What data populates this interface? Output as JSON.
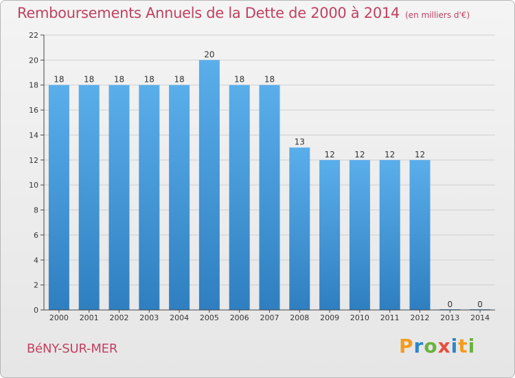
{
  "title": "Remboursements Annuels de la Dette de 2000 à 2014",
  "unit": "(en milliers d'€)",
  "location": "BéNY-SUR-MER",
  "logo": {
    "letters": [
      "P",
      "r",
      "o",
      "x",
      "i",
      "t",
      "i"
    ],
    "colors": [
      "#f39c1f",
      "#2e86c9",
      "#6ab23e",
      "#e94e3d",
      "#2e86c9",
      "#f39c1f",
      "#6ab23e"
    ]
  },
  "colors": {
    "bar_top": "#5aaeea",
    "bar_bottom": "#2f7fc0",
    "title": "#c0415f",
    "grid": "#cfcfcf",
    "axis": "#444444",
    "text": "#333333"
  },
  "chart_data": {
    "type": "bar",
    "categories": [
      "2000",
      "2001",
      "2002",
      "2003",
      "2004",
      "2005",
      "2006",
      "2007",
      "2008",
      "2009",
      "2010",
      "2011",
      "2012",
      "2013",
      "2014"
    ],
    "values": [
      18,
      18,
      18,
      18,
      18,
      20,
      18,
      18,
      13,
      12,
      12,
      12,
      12,
      0,
      0
    ],
    "data_labels": [
      "18",
      "18",
      "18",
      "18",
      "18",
      "20",
      "18",
      "18",
      "13",
      "12",
      "12",
      "12",
      "12",
      "0",
      "0"
    ],
    "y_ticks": [
      "0",
      "2",
      "4",
      "6",
      "8",
      "10",
      "12",
      "14",
      "16",
      "18",
      "20",
      "22"
    ],
    "ylim": [
      0,
      22
    ],
    "grid": true,
    "legend": false
  }
}
